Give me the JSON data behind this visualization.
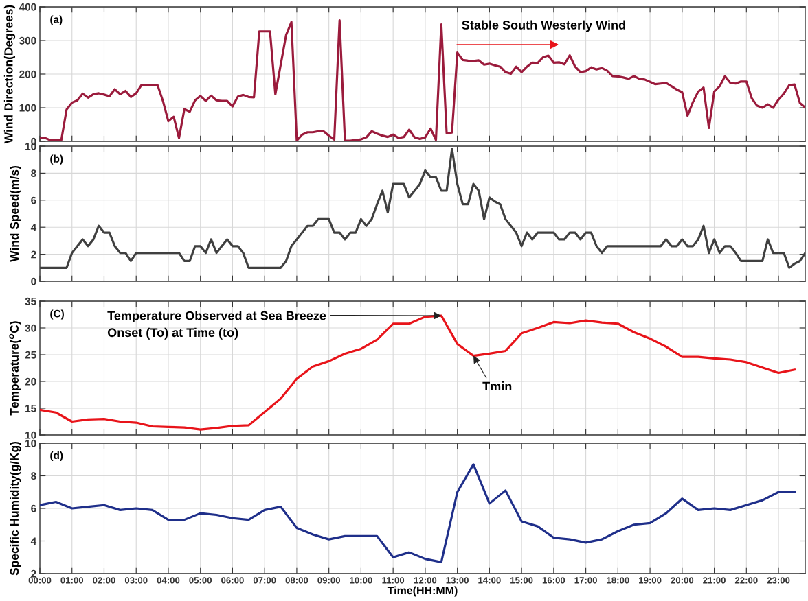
{
  "chart_data": [
    {
      "type": "line",
      "ylabel": "Wind Direction(Degrees)",
      "xlim": [
        0,
        23.833
      ],
      "ylim": [
        0,
        400
      ],
      "yticks": [
        0,
        100,
        200,
        300,
        400
      ],
      "grid": true,
      "tick_labels": "y",
      "xticks": [
        {
          "value": 0,
          "label": null
        },
        {
          "value": 1,
          "label": null
        },
        {
          "value": 2,
          "label": null
        },
        {
          "value": 3,
          "label": null
        },
        {
          "value": 4,
          "label": null
        },
        {
          "value": 5,
          "label": null
        },
        {
          "value": 6,
          "label": null
        },
        {
          "value": 7,
          "label": null
        },
        {
          "value": 8,
          "label": null
        },
        {
          "value": 9,
          "label": null
        },
        {
          "value": 10,
          "label": null
        },
        {
          "value": 11,
          "label": null
        },
        {
          "value": 12,
          "label": null
        },
        {
          "value": 13,
          "label": null
        },
        {
          "value": 14,
          "label": null
        },
        {
          "value": 15,
          "label": null
        },
        {
          "value": 16,
          "label": null
        },
        {
          "value": 17,
          "label": null
        },
        {
          "value": 18,
          "label": null
        },
        {
          "value": 19,
          "label": null
        },
        {
          "value": 20,
          "label": null
        },
        {
          "value": 21,
          "label": null
        },
        {
          "value": 22,
          "label": null
        },
        {
          "value": 23,
          "label": null
        }
      ],
      "annotations": [
        "(a)",
        "Stable South Westerly Wind"
      ],
      "x": [
        0,
        0.167,
        0.333,
        0.5,
        0.667,
        0.833,
        1,
        1.167,
        1.333,
        1.5,
        1.667,
        1.833,
        2,
        2.167,
        2.333,
        2.5,
        2.667,
        2.833,
        3,
        3.167,
        3.333,
        3.5,
        3.667,
        3.833,
        4,
        4.167,
        4.333,
        4.5,
        4.667,
        4.833,
        5,
        5.167,
        5.333,
        5.5,
        5.667,
        5.833,
        6,
        6.167,
        6.333,
        6.5,
        6.667,
        6.833,
        7,
        7.167,
        7.333,
        7.5,
        7.667,
        7.833,
        8,
        8.167,
        8.333,
        8.5,
        8.667,
        8.833,
        9,
        9.167,
        9.333,
        9.5,
        9.667,
        9.833,
        10,
        10.167,
        10.333,
        10.5,
        10.667,
        10.833,
        11,
        11.167,
        11.333,
        11.5,
        11.667,
        11.833,
        12,
        12.167,
        12.333,
        12.5,
        12.667,
        12.833,
        13,
        13.167,
        13.333,
        13.5,
        13.667,
        13.833,
        14,
        14.167,
        14.333,
        14.5,
        14.667,
        14.833,
        15,
        15.167,
        15.333,
        15.5,
        15.667,
        15.833,
        16,
        16.167,
        16.333,
        16.5,
        16.667,
        16.833,
        17,
        17.167,
        17.333,
        17.5,
        17.667,
        17.833,
        18,
        18.167,
        18.333,
        18.5,
        18.667,
        18.833,
        19,
        19.167,
        19.333,
        19.5,
        19.667,
        19.833,
        20,
        20.167,
        20.333,
        20.5,
        20.667,
        20.833,
        21,
        21.167,
        21.333,
        21.5,
        21.667,
        21.833,
        22,
        22.167,
        22.333,
        22.5,
        22.667,
        22.833,
        23,
        23.167,
        23.333,
        23.5,
        23.667,
        23.833
      ],
      "series": [
        {
          "color": "#9b1b3c",
          "values": [
            10,
            10,
            3,
            3,
            3,
            95,
            115,
            122,
            142,
            130,
            140,
            143,
            139,
            134,
            155,
            140,
            150,
            132,
            143,
            168,
            168,
            168,
            167,
            120,
            60,
            73,
            10,
            96,
            88,
            122,
            135,
            120,
            136,
            122,
            120,
            120,
            104,
            133,
            138,
            132,
            131,
            327,
            327,
            327,
            140,
            228,
            316,
            355,
            2,
            20,
            27,
            27,
            30,
            30,
            17,
            5,
            360,
            2,
            2,
            4,
            6,
            12,
            30,
            23,
            17,
            13,
            20,
            10,
            13,
            35,
            12,
            7,
            12,
            38,
            4,
            348,
            24,
            26,
            264,
            242,
            240,
            239,
            241,
            228,
            231,
            226,
            222,
            206,
            201,
            222,
            206,
            222,
            234,
            233,
            250,
            255,
            234,
            235,
            229,
            256,
            222,
            206,
            209,
            220,
            214,
            218,
            210,
            194,
            193,
            190,
            186,
            194,
            186,
            184,
            177,
            170,
            172,
            174,
            164,
            154,
            146,
            76,
            116,
            148,
            160,
            40,
            148,
            164,
            194,
            174,
            172,
            178,
            178,
            128,
            106,
            100,
            110,
            100,
            124,
            142,
            167,
            169,
            114,
            100
          ]
        }
      ]
    },
    {
      "type": "line",
      "ylabel": "Wind Speed(m/s)",
      "xlim": [
        0,
        23.833
      ],
      "ylim": [
        0,
        10
      ],
      "yticks": [
        0,
        2,
        4,
        6,
        8,
        10
      ],
      "grid": true,
      "tick_labels": "y",
      "xticks": [
        {
          "value": 0,
          "label": null
        },
        {
          "value": 1,
          "label": null
        },
        {
          "value": 2,
          "label": null
        },
        {
          "value": 3,
          "label": null
        },
        {
          "value": 4,
          "label": null
        },
        {
          "value": 5,
          "label": null
        },
        {
          "value": 6,
          "label": null
        },
        {
          "value": 7,
          "label": null
        },
        {
          "value": 8,
          "label": null
        },
        {
          "value": 9,
          "label": null
        },
        {
          "value": 10,
          "label": null
        },
        {
          "value": 11,
          "label": null
        },
        {
          "value": 12,
          "label": null
        },
        {
          "value": 13,
          "label": null
        },
        {
          "value": 14,
          "label": null
        },
        {
          "value": 15,
          "label": null
        },
        {
          "value": 16,
          "label": null
        },
        {
          "value": 17,
          "label": null
        },
        {
          "value": 18,
          "label": null
        },
        {
          "value": 19,
          "label": null
        },
        {
          "value": 20,
          "label": null
        },
        {
          "value": 21,
          "label": null
        },
        {
          "value": 22,
          "label": null
        },
        {
          "value": 23,
          "label": null
        }
      ],
      "annotations": [
        "(b)"
      ],
      "x": [
        0,
        0.167,
        0.333,
        0.5,
        0.667,
        0.833,
        1,
        1.167,
        1.333,
        1.5,
        1.667,
        1.833,
        2,
        2.167,
        2.333,
        2.5,
        2.667,
        2.833,
        3,
        3.167,
        3.333,
        3.5,
        3.667,
        3.833,
        4,
        4.167,
        4.333,
        4.5,
        4.667,
        4.833,
        5,
        5.167,
        5.333,
        5.5,
        5.667,
        5.833,
        6,
        6.167,
        6.333,
        6.5,
        6.667,
        6.833,
        7,
        7.167,
        7.333,
        7.5,
        7.667,
        7.833,
        8,
        8.167,
        8.333,
        8.5,
        8.667,
        8.833,
        9,
        9.167,
        9.333,
        9.5,
        9.667,
        9.833,
        10,
        10.167,
        10.333,
        10.5,
        10.667,
        10.833,
        11,
        11.167,
        11.333,
        11.5,
        11.667,
        11.833,
        12,
        12.167,
        12.333,
        12.5,
        12.667,
        12.833,
        13,
        13.167,
        13.333,
        13.5,
        13.667,
        13.833,
        14,
        14.167,
        14.333,
        14.5,
        14.667,
        14.833,
        15,
        15.167,
        15.333,
        15.5,
        15.667,
        15.833,
        16,
        16.167,
        16.333,
        16.5,
        16.667,
        16.833,
        17,
        17.167,
        17.333,
        17.5,
        17.667,
        17.833,
        18,
        18.167,
        18.333,
        18.5,
        18.667,
        18.833,
        19,
        19.167,
        19.333,
        19.5,
        19.667,
        19.833,
        20,
        20.167,
        20.333,
        20.5,
        20.667,
        20.833,
        21,
        21.167,
        21.333,
        21.5,
        21.667,
        21.833,
        22,
        22.167,
        22.333,
        22.5,
        22.667,
        22.833,
        23,
        23.167,
        23.333,
        23.5,
        23.667,
        23.833
      ],
      "series": [
        {
          "color": "#404040",
          "values": [
            1.0,
            1.0,
            1.0,
            1.0,
            1.0,
            1.0,
            2.1,
            2.6,
            3.1,
            2.6,
            3.1,
            4.1,
            3.6,
            3.6,
            2.6,
            2.1,
            2.1,
            1.5,
            2.1,
            2.1,
            2.1,
            2.1,
            2.1,
            2.1,
            2.1,
            2.1,
            2.1,
            1.5,
            1.5,
            2.6,
            2.6,
            2.1,
            3.1,
            2.1,
            2.6,
            3.1,
            2.6,
            2.6,
            2.1,
            1.0,
            1.0,
            1.0,
            1.0,
            1.0,
            1.0,
            1.0,
            1.5,
            2.6,
            3.1,
            3.6,
            4.1,
            4.1,
            4.6,
            4.6,
            4.6,
            3.6,
            3.6,
            3.1,
            3.6,
            3.6,
            4.6,
            4.1,
            4.6,
            5.7,
            6.7,
            5.1,
            7.2,
            7.2,
            7.2,
            6.2,
            6.7,
            7.2,
            8.2,
            7.7,
            7.7,
            6.7,
            6.7,
            9.8,
            7.2,
            5.7,
            5.7,
            7.2,
            6.7,
            4.6,
            6.2,
            5.9,
            5.7,
            4.6,
            4.1,
            3.6,
            2.6,
            3.6,
            3.1,
            3.6,
            3.6,
            3.6,
            3.6,
            3.1,
            3.1,
            3.6,
            3.6,
            3.1,
            3.6,
            3.6,
            2.6,
            2.1,
            2.6,
            2.6,
            2.6,
            2.6,
            2.6,
            2.6,
            2.6,
            2.6,
            2.6,
            2.6,
            2.6,
            3.1,
            2.6,
            2.6,
            3.1,
            2.6,
            2.6,
            3.1,
            4.1,
            2.1,
            3.1,
            2.1,
            2.6,
            2.6,
            2.1,
            1.5,
            1.5,
            1.5,
            1.5,
            1.5,
            3.1,
            2.1,
            2.1,
            2.1,
            1.0,
            1.3,
            1.5,
            2.1
          ]
        }
      ]
    },
    {
      "type": "line",
      "ylabel": "Temperature($^{o}$C)",
      "xlim": [
        0,
        23.833
      ],
      "ylim": [
        10,
        35
      ],
      "yticks": [
        10,
        15,
        20,
        25,
        30,
        35
      ],
      "grid": true,
      "tick_labels": "y",
      "xticks": [
        {
          "value": 0,
          "label": null
        },
        {
          "value": 1,
          "label": null
        },
        {
          "value": 2,
          "label": null
        },
        {
          "value": 3,
          "label": null
        },
        {
          "value": 4,
          "label": null
        },
        {
          "value": 5,
          "label": null
        },
        {
          "value": 6,
          "label": null
        },
        {
          "value": 7,
          "label": null
        },
        {
          "value": 8,
          "label": null
        },
        {
          "value": 9,
          "label": null
        },
        {
          "value": 10,
          "label": null
        },
        {
          "value": 11,
          "label": null
        },
        {
          "value": 12,
          "label": null
        },
        {
          "value": 13,
          "label": null
        },
        {
          "value": 14,
          "label": null
        },
        {
          "value": 15,
          "label": null
        },
        {
          "value": 16,
          "label": null
        },
        {
          "value": 17,
          "label": null
        },
        {
          "value": 18,
          "label": null
        },
        {
          "value": 19,
          "label": null
        },
        {
          "value": 20,
          "label": null
        },
        {
          "value": 21,
          "label": null
        },
        {
          "value": 22,
          "label": null
        },
        {
          "value": 23,
          "label": null
        }
      ],
      "annotations": [
        "(C)",
        {
          "text": "Temperature Observed at Sea Breeze\nOnset (To) at Time (to)",
          "x": 12.5,
          "y": 32.3
        },
        {
          "text": "Tmin",
          "x": 13.5,
          "y": 24.8
        }
      ],
      "x": [
        0,
        0.5,
        1,
        1.5,
        2,
        2.5,
        3,
        3.5,
        4,
        4.5,
        5,
        5.5,
        6,
        6.5,
        7,
        7.5,
        8,
        8.5,
        9,
        9.5,
        10,
        10.5,
        11,
        11.5,
        12,
        12.5,
        13,
        13.5,
        14,
        14.5,
        15,
        15.5,
        16,
        16.5,
        17,
        17.5,
        18,
        18.5,
        19,
        19.5,
        20,
        20.5,
        21,
        21.5,
        22,
        22.5,
        23,
        23.5
      ],
      "series": [
        {
          "color": "#e8141a",
          "values": [
            14.7,
            14.2,
            12.5,
            12.9,
            13.0,
            12.5,
            12.3,
            11.6,
            11.5,
            11.4,
            11.0,
            11.3,
            11.7,
            11.8,
            14.3,
            16.8,
            20.5,
            22.8,
            23.8,
            25.2,
            26.1,
            27.8,
            30.8,
            30.8,
            32.1,
            32.3,
            27.0,
            24.8,
            25.2,
            25.7,
            29.0,
            30.0,
            31.1,
            30.9,
            31.4,
            31.0,
            30.8,
            29.2,
            28.0,
            26.5,
            24.6,
            24.6,
            24.3,
            24.1,
            23.6,
            22.6,
            21.6,
            22.2
          ]
        }
      ]
    },
    {
      "type": "line",
      "ylabel": "Specific Humidity(g/Kg)",
      "xlabel": "Time(HH:MM)",
      "xlim": [
        0,
        23.833
      ],
      "ylim": [
        2,
        10
      ],
      "yticks": [
        2,
        4,
        6,
        8,
        10
      ],
      "grid": true,
      "xticks": [
        {
          "value": 0,
          "label": "00:00"
        },
        {
          "value": 1,
          "label": "01:00"
        },
        {
          "value": 2,
          "label": "02:00"
        },
        {
          "value": 3,
          "label": "03:00"
        },
        {
          "value": 4,
          "label": "04:00"
        },
        {
          "value": 5,
          "label": "05:00"
        },
        {
          "value": 6,
          "label": "06:00"
        },
        {
          "value": 7,
          "label": "07:00"
        },
        {
          "value": 8,
          "label": "08:00"
        },
        {
          "value": 9,
          "label": "09:00"
        },
        {
          "value": 10,
          "label": "10:00"
        },
        {
          "value": 11,
          "label": "11:00"
        },
        {
          "value": 12,
          "label": "12:00"
        },
        {
          "value": 13,
          "label": "13:00"
        },
        {
          "value": 14,
          "label": "14:00"
        },
        {
          "value": 15,
          "label": "15:00"
        },
        {
          "value": 16,
          "label": "16:00"
        },
        {
          "value": 17,
          "label": "17:00"
        },
        {
          "value": 18,
          "label": "18:00"
        },
        {
          "value": 19,
          "label": "19:00"
        },
        {
          "value": 20,
          "label": "20:00"
        },
        {
          "value": 21,
          "label": "21:00"
        },
        {
          "value": 22,
          "label": "22:00"
        },
        {
          "value": 23,
          "label": "23:00"
        }
      ],
      "annotations": [
        "(d)"
      ],
      "x": [
        0,
        0.5,
        1,
        1.5,
        2,
        2.5,
        3,
        3.5,
        4,
        4.5,
        5,
        5.5,
        6,
        6.5,
        7,
        7.5,
        8,
        8.5,
        9,
        9.5,
        10,
        10.5,
        11,
        11.5,
        12,
        12.5,
        13,
        13.5,
        14,
        14.5,
        15,
        15.5,
        16,
        16.5,
        17,
        17.5,
        18,
        18.5,
        19,
        19.5,
        20,
        20.5,
        21,
        21.5,
        22,
        22.5,
        23,
        23.5
      ],
      "series": [
        {
          "color": "#1f2f8a",
          "values": [
            6.2,
            6.4,
            6.0,
            6.1,
            6.2,
            5.9,
            6.0,
            5.9,
            5.3,
            5.3,
            5.7,
            5.6,
            5.4,
            5.3,
            5.9,
            6.1,
            4.8,
            4.4,
            4.1,
            4.3,
            4.3,
            4.3,
            3.0,
            3.3,
            2.9,
            2.7,
            7.0,
            8.7,
            6.3,
            7.1,
            5.2,
            4.9,
            4.2,
            4.1,
            3.9,
            4.1,
            4.6,
            5.0,
            5.1,
            5.7,
            6.6,
            5.9,
            6.0,
            5.9,
            6.2,
            6.5,
            7.0,
            7.0
          ]
        }
      ]
    }
  ]
}
